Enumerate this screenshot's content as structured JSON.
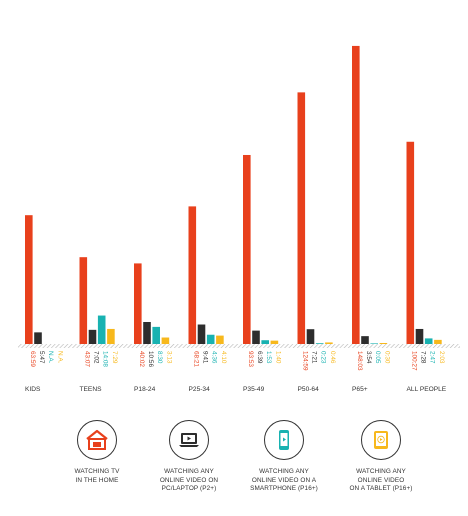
{
  "chart_data": {
    "type": "bar",
    "title": "",
    "xlabel": "",
    "ylabel": "",
    "ylim": [
      0,
      150
    ],
    "categories": [
      "KIDS",
      "TEENS",
      "P18-24",
      "P25-34",
      "P35-49",
      "P50-64",
      "P65+",
      "ALL PEOPLE"
    ],
    "series": [
      {
        "name": "WATCHING TV IN THE HOME",
        "color": "#e8401c",
        "values": [
          63.98,
          43.12,
          40.03,
          68.35,
          93.88,
          124.98,
          148.05,
          100.45
        ],
        "labels": [
          "63:59",
          "43:07",
          "40:02",
          "68:21",
          "93:53",
          "124:59",
          "148:03",
          "100:27"
        ]
      },
      {
        "name": "WATCHING ANY ONLINE VIDEO ON PC/LAPTOP (P2+)",
        "color": "#2d2d2d",
        "values": [
          5.78,
          7.03,
          10.93,
          9.68,
          6.65,
          7.35,
          3.9,
          7.47
        ],
        "labels": [
          "5:47",
          "7:02",
          "10:56",
          "9:41",
          "6:39",
          "7:21",
          "3:54",
          "7:28"
        ]
      },
      {
        "name": "WATCHING ANY ONLINE VIDEO ON A SMARTPHONE (P16+)",
        "color": "#18b2b1",
        "values": [
          null,
          14.13,
          8.5,
          4.6,
          1.88,
          0.38,
          0.08,
          2.78
        ],
        "labels": [
          "N.A.",
          "14:08",
          "8:30",
          "4:36",
          "1:53",
          "0:23",
          "0:05",
          "2:47"
        ]
      },
      {
        "name": "WATCHING ANY ONLINE VIDEO ON A TABLET (P16+)",
        "color": "#f7b81c",
        "values": [
          null,
          7.48,
          3.22,
          4.17,
          1.67,
          0.77,
          0.5,
          2.05
        ],
        "labels": [
          "N.A.",
          "7:29",
          "3:13",
          "4:10",
          "1:40",
          "0:46",
          "0:30",
          "2:03"
        ]
      }
    ]
  },
  "legend": [
    {
      "icon": "tv-house-icon",
      "label": "WATCHING TV\nIN THE HOME",
      "color": "#e8401c"
    },
    {
      "icon": "laptop-play-icon",
      "label": "WATCHING ANY\nONLINE VIDEO ON\nPC/LAPTOP (P2+)",
      "color": "#2d2d2d"
    },
    {
      "icon": "smartphone-play-icon",
      "label": "WATCHING ANY\nONLINE VIDEO ON A\nSMARTPHONE (P16+)",
      "color": "#18b2b1"
    },
    {
      "icon": "tablet-play-icon",
      "label": "WATCHING ANY\nONLINE VIDEO\nON A TABLET (P16+)",
      "color": "#f7b81c"
    }
  ]
}
